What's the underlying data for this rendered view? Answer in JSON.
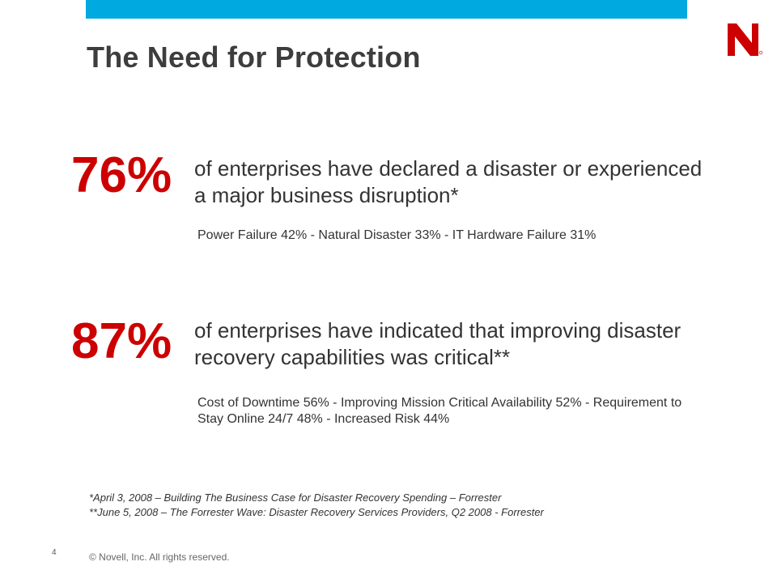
{
  "header": {
    "title": "The Need for Protection",
    "accent_color": "#00a9e0",
    "logo_icon": "novell-n-logo"
  },
  "stats": [
    {
      "value": "76%",
      "description": "of enterprises have declared a disaster or experienced a major business disruption*",
      "detail": "Power Failure 42% - Natural Disaster 33% - IT Hardware Failure 31%"
    },
    {
      "value": "87%",
      "description": "of enterprises have indicated that improving disaster recovery capabilities was critical**",
      "detail": "Cost of Downtime 56% - Improving Mission Critical Availability 52% - Requirement to Stay Online 24/7 48% - Increased Risk 44%"
    }
  ],
  "stat_color": "#cc0000",
  "footnotes": [
    "*April 3, 2008 – Building The Business Case for Disaster Recovery Spending – Forrester",
    "**June 5, 2008 – The Forrester Wave: Disaster Recovery Services Providers, Q2 2008 - Forrester"
  ],
  "footer": {
    "page_number": "4",
    "copyright": "© Novell, Inc.  All rights reserved."
  }
}
